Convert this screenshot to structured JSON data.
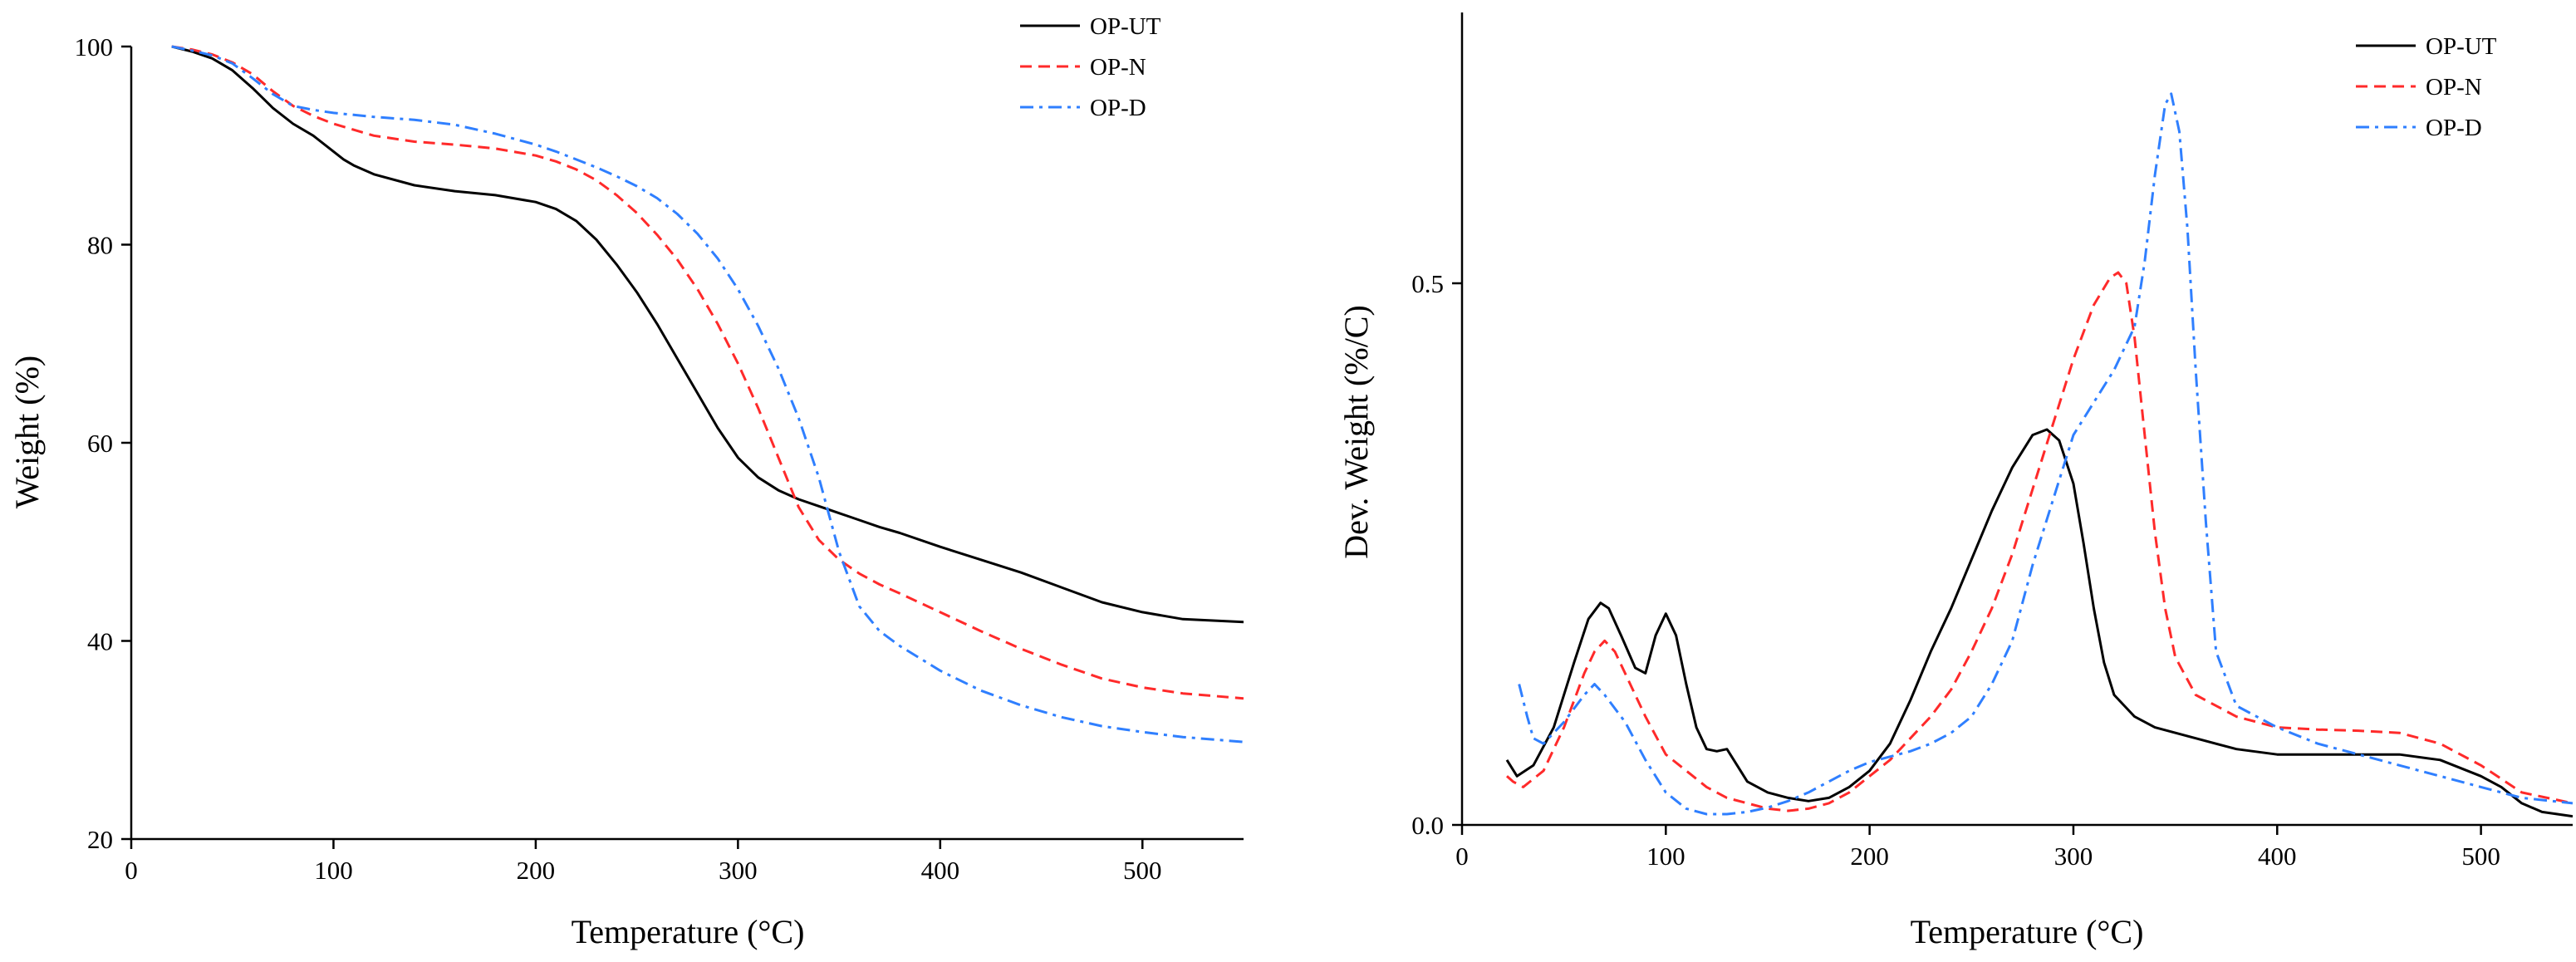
{
  "chart_data": [
    {
      "type": "line",
      "title": "",
      "xlabel": "Temperature (°C)",
      "ylabel": "Weight (%)",
      "xlim": [
        0,
        550
      ],
      "ylim": [
        20,
        100
      ],
      "xticks": [
        0,
        100,
        200,
        300,
        400,
        500
      ],
      "xtick_labels": [
        "0",
        "100",
        "200",
        "300",
        "400",
        "500"
      ],
      "yticks": [
        20,
        40,
        60,
        80,
        100
      ],
      "ytick_labels": [
        "20",
        "40",
        "60",
        "80",
        "100"
      ],
      "legend_position": "top-right",
      "series": [
        {
          "name": "OP-UT",
          "color": "#000000",
          "dash": "solid",
          "x": [
            20,
            30,
            40,
            50,
            60,
            70,
            80,
            90,
            100,
            105,
            110,
            120,
            140,
            160,
            180,
            200,
            210,
            220,
            230,
            240,
            250,
            260,
            270,
            280,
            290,
            300,
            310,
            320,
            330,
            340,
            350,
            360,
            370,
            380,
            400,
            420,
            440,
            460,
            480,
            500,
            520,
            550
          ],
          "y": [
            100,
            99.5,
            98.8,
            97.6,
            95.8,
            93.8,
            92.2,
            91,
            89.4,
            88.6,
            88,
            87.1,
            86,
            85.4,
            85,
            84.3,
            83.6,
            82.4,
            80.5,
            78,
            75.2,
            72,
            68.5,
            65,
            61.5,
            58.5,
            56.5,
            55.2,
            54.3,
            53.6,
            52.9,
            52.2,
            51.5,
            50.9,
            49.5,
            48.2,
            46.9,
            45.4,
            43.9,
            42.9,
            42.2,
            41.9
          ]
        },
        {
          "name": "OP-N",
          "color": "#ff2a2a",
          "dash": "dashed",
          "x": [
            20,
            30,
            40,
            50,
            60,
            70,
            80,
            90,
            100,
            120,
            140,
            160,
            180,
            200,
            210,
            220,
            230,
            240,
            250,
            260,
            270,
            280,
            290,
            300,
            310,
            320,
            330,
            340,
            350,
            360,
            370,
            380,
            400,
            420,
            440,
            460,
            480,
            500,
            520,
            550
          ],
          "y": [
            100,
            99.7,
            99.2,
            98.4,
            97.2,
            95.5,
            94,
            93,
            92.2,
            91,
            90.4,
            90.1,
            89.7,
            89,
            88.4,
            87.6,
            86.5,
            85,
            83.2,
            81,
            78.5,
            75.5,
            72,
            68,
            63.5,
            58.5,
            53.5,
            50.2,
            48.2,
            46.8,
            45.7,
            44.8,
            42.9,
            41,
            39.2,
            37.6,
            36.2,
            35.3,
            34.7,
            34.2
          ]
        },
        {
          "name": "OP-D",
          "color": "#2f7fff",
          "dash": "dashdot",
          "x": [
            20,
            30,
            40,
            50,
            60,
            70,
            80,
            90,
            100,
            120,
            140,
            160,
            180,
            200,
            210,
            220,
            230,
            240,
            250,
            260,
            270,
            280,
            290,
            300,
            310,
            320,
            330,
            340,
            350,
            360,
            370,
            380,
            400,
            420,
            440,
            460,
            480,
            500,
            520,
            550
          ],
          "y": [
            100,
            99.6,
            99.1,
            98.3,
            96.8,
            95.2,
            94,
            93.6,
            93.3,
            92.9,
            92.6,
            92.1,
            91.2,
            90.1,
            89.4,
            88.6,
            87.8,
            86.9,
            85.9,
            84.7,
            83.1,
            81.1,
            78.6,
            75.5,
            71.8,
            67.5,
            62.5,
            56.5,
            49,
            43.5,
            41,
            39.5,
            37,
            35,
            33.5,
            32.3,
            31.4,
            30.8,
            30.3,
            29.8
          ]
        }
      ]
    },
    {
      "type": "line",
      "title": "",
      "xlabel": "Temperature (°C)",
      "ylabel": "Dev. Weight (%/C)",
      "xlim": [
        0,
        545
      ],
      "ylim": [
        0,
        0.75
      ],
      "xticks": [
        0,
        100,
        200,
        300,
        400,
        500
      ],
      "xtick_labels": [
        "0",
        "100",
        "200",
        "300",
        "400",
        "500"
      ],
      "yticks": [
        0,
        0.5
      ],
      "ytick_labels": [
        "0.0",
        "0.5"
      ],
      "legend_position": "top-right",
      "series": [
        {
          "name": "OP-UT",
          "color": "#000000",
          "dash": "solid",
          "x": [
            22,
            27,
            35,
            45,
            55,
            62,
            68,
            72,
            78,
            85,
            90,
            95,
            100,
            105,
            110,
            115,
            120,
            125,
            130,
            135,
            140,
            150,
            160,
            170,
            180,
            190,
            200,
            210,
            220,
            230,
            240,
            250,
            260,
            270,
            280,
            287,
            293,
            300,
            305,
            310,
            315,
            320,
            330,
            340,
            360,
            380,
            400,
            420,
            440,
            460,
            480,
            500,
            510,
            520,
            530,
            545
          ],
          "y": [
            0.06,
            0.045,
            0.055,
            0.09,
            0.15,
            0.19,
            0.205,
            0.2,
            0.175,
            0.145,
            0.14,
            0.175,
            0.195,
            0.175,
            0.13,
            0.09,
            0.07,
            0.068,
            0.07,
            0.055,
            0.04,
            0.03,
            0.025,
            0.022,
            0.025,
            0.035,
            0.05,
            0.075,
            0.115,
            0.16,
            0.2,
            0.245,
            0.29,
            0.33,
            0.36,
            0.365,
            0.355,
            0.315,
            0.26,
            0.2,
            0.15,
            0.12,
            0.1,
            0.09,
            0.08,
            0.07,
            0.065,
            0.065,
            0.065,
            0.065,
            0.06,
            0.045,
            0.035,
            0.02,
            0.012,
            0.008
          ]
        },
        {
          "name": "OP-N",
          "color": "#ff2a2a",
          "dash": "dashed",
          "x": [
            22,
            25,
            30,
            40,
            50,
            60,
            65,
            70,
            75,
            80,
            90,
            100,
            110,
            120,
            130,
            140,
            150,
            160,
            170,
            180,
            190,
            200,
            210,
            220,
            230,
            240,
            250,
            260,
            270,
            280,
            290,
            300,
            310,
            318,
            322,
            326,
            330,
            335,
            340,
            345,
            350,
            360,
            380,
            400,
            420,
            440,
            460,
            480,
            500,
            520,
            545
          ],
          "y": [
            0.045,
            0.04,
            0.035,
            0.05,
            0.09,
            0.14,
            0.16,
            0.17,
            0.16,
            0.14,
            0.1,
            0.065,
            0.05,
            0.035,
            0.025,
            0.02,
            0.015,
            0.013,
            0.015,
            0.02,
            0.03,
            0.045,
            0.06,
            0.08,
            0.1,
            0.125,
            0.16,
            0.2,
            0.25,
            0.31,
            0.37,
            0.43,
            0.48,
            0.505,
            0.51,
            0.5,
            0.45,
            0.36,
            0.27,
            0.2,
            0.155,
            0.12,
            0.1,
            0.09,
            0.088,
            0.087,
            0.085,
            0.075,
            0.055,
            0.03,
            0.02
          ]
        },
        {
          "name": "OP-D",
          "color": "#2f7fff",
          "dash": "dashdot",
          "x": [
            28,
            32,
            35,
            40,
            50,
            60,
            65,
            70,
            80,
            90,
            100,
            110,
            120,
            130,
            140,
            150,
            160,
            170,
            180,
            190,
            200,
            210,
            220,
            230,
            240,
            250,
            260,
            270,
            280,
            290,
            300,
            310,
            320,
            330,
            335,
            340,
            345,
            348,
            352,
            356,
            360,
            365,
            370,
            380,
            400,
            420,
            440,
            460,
            480,
            500,
            520,
            545
          ],
          "y": [
            0.13,
            0.1,
            0.08,
            0.075,
            0.095,
            0.12,
            0.13,
            0.12,
            0.095,
            0.06,
            0.03,
            0.015,
            0.01,
            0.01,
            0.012,
            0.016,
            0.022,
            0.03,
            0.04,
            0.05,
            0.058,
            0.063,
            0.068,
            0.075,
            0.085,
            0.1,
            0.13,
            0.17,
            0.24,
            0.3,
            0.36,
            0.39,
            0.42,
            0.46,
            0.52,
            0.6,
            0.665,
            0.675,
            0.64,
            0.55,
            0.42,
            0.28,
            0.16,
            0.11,
            0.09,
            0.075,
            0.065,
            0.055,
            0.045,
            0.035,
            0.025,
            0.02
          ]
        }
      ]
    }
  ]
}
